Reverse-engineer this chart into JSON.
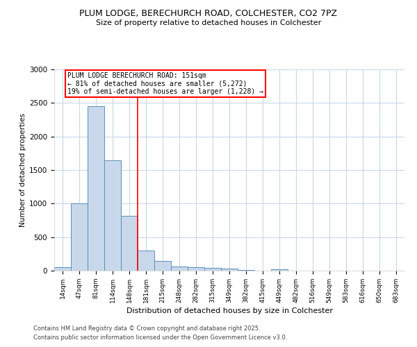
{
  "title_line1": "PLUM LODGE, BERECHURCH ROAD, COLCHESTER, CO2 7PZ",
  "title_line2": "Size of property relative to detached houses in Colchester",
  "xlabel": "Distribution of detached houses by size in Colchester",
  "ylabel": "Number of detached properties",
  "categories": [
    "14sqm",
    "47sqm",
    "81sqm",
    "114sqm",
    "148sqm",
    "181sqm",
    "215sqm",
    "248sqm",
    "282sqm",
    "315sqm",
    "349sqm",
    "382sqm",
    "415sqm",
    "449sqm",
    "482sqm",
    "516sqm",
    "549sqm",
    "583sqm",
    "616sqm",
    "650sqm",
    "683sqm"
  ],
  "values": [
    50,
    1000,
    2450,
    1650,
    820,
    300,
    140,
    60,
    55,
    45,
    30,
    15,
    0,
    20,
    0,
    0,
    0,
    0,
    0,
    0,
    0
  ],
  "bar_color": "#c8d8ea",
  "bar_edge_color": "#5b8db8",
  "red_line_index": 4.5,
  "annotation_line1": "PLUM LODGE BERECHURCH ROAD: 151sqm",
  "annotation_line2": "← 81% of detached houses are smaller (5,272)",
  "annotation_line3": "19% of semi-detached houses are larger (1,228) →",
  "ylim": [
    0,
    3000
  ],
  "footnote1": "Contains HM Land Registry data © Crown copyright and database right 2025.",
  "footnote2": "Contains public sector information licensed under the Open Government Licence v3.0.",
  "background_color": "#ffffff",
  "grid_color": "#c8d8e8"
}
